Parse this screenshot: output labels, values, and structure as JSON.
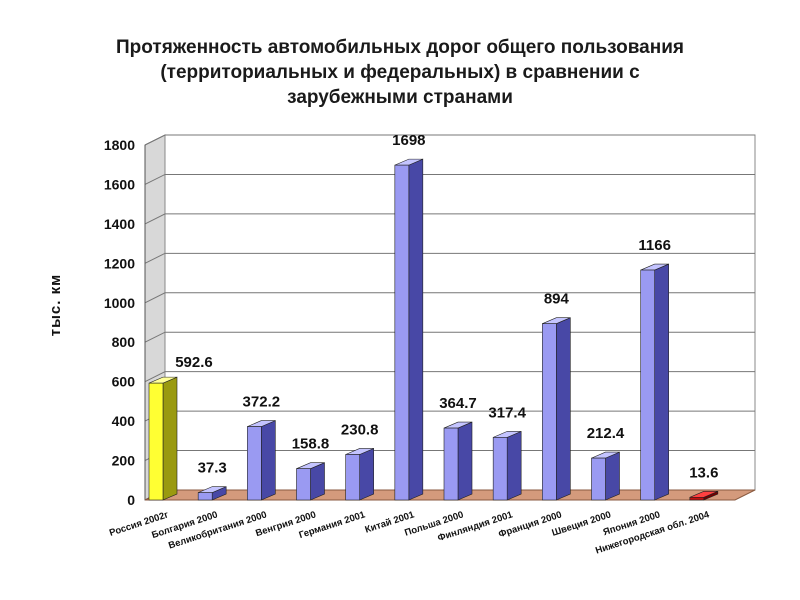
{
  "chart_data": {
    "type": "bar",
    "title_lines": [
      "Протяженность автомобильных дорог общего пользования",
      "(территориальных и федеральных) в сравнении с",
      "зарубежными странами"
    ],
    "ylabel": "тыс. км",
    "ylim": [
      0,
      1800
    ],
    "yticks": [
      "0",
      "200",
      "400",
      "600",
      "800",
      "1000",
      "1200",
      "1400",
      "1600",
      "1800"
    ],
    "grid": true,
    "legend": "none",
    "categories": [
      "Россия 2002г",
      "Болгария 2000",
      "Великобритания 2000",
      "Венгрия 2000",
      "Германия 2001",
      "Китай 2001",
      "Польша 2000",
      "Финляндия 2001",
      "Франция 2000",
      "Швеция 2000",
      "Япония 2000",
      "Нижегородская обл. 2004"
    ],
    "values": [
      592.6,
      37.3,
      372.2,
      158.8,
      230.8,
      1698,
      364.7,
      317.4,
      894,
      212.4,
      1166,
      13.6
    ],
    "value_labels": [
      "592.6",
      "37.3",
      "372.2",
      "158.8",
      "230.8",
      "1698",
      "364.7",
      "317.4",
      "894",
      "212.4",
      "1166",
      "13.6"
    ],
    "colors": {
      "default_front": "#9a9af2",
      "default_side": "#4848a6",
      "default_top": "#c4c4ff",
      "russia_front": "#ffff33",
      "russia_side": "#9a9a10",
      "russia_top": "#ffff99",
      "region_front": "#c01010",
      "region_side": "#700000",
      "region_top": "#ff4040",
      "floor": "#d49a7c"
    }
  }
}
